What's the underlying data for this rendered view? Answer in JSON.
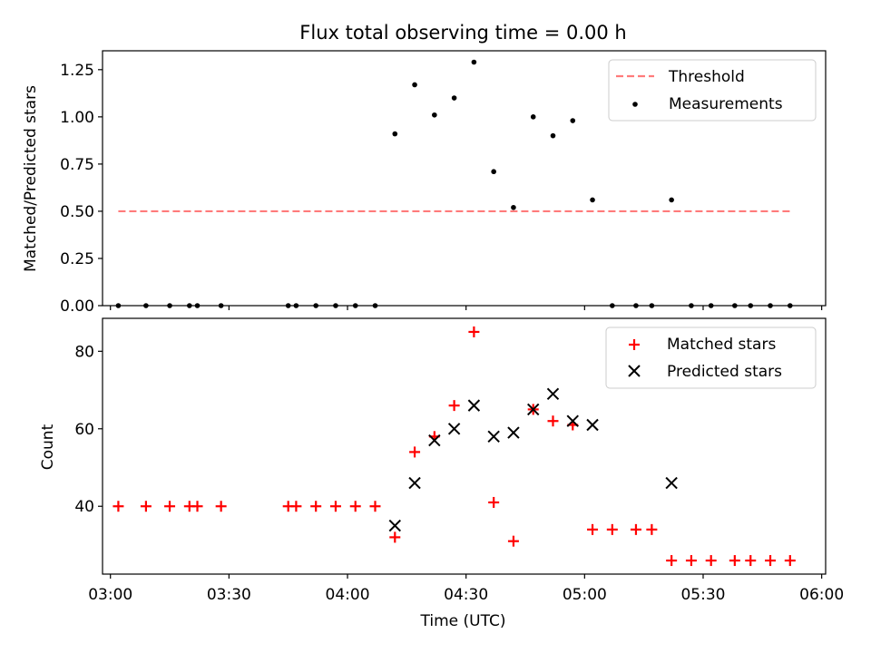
{
  "chart_data": [
    {
      "type": "scatter",
      "title": "Flux total observing time = 0.00 h",
      "xlabel": "",
      "ylabel": "Matched/Predicted stars",
      "xlim": [
        "02:58",
        "06:01"
      ],
      "ylim": [
        0,
        1.35
      ],
      "yticks": [
        "0.00",
        "0.25",
        "0.50",
        "0.75",
        "1.00",
        "1.25"
      ],
      "grid": false,
      "legend_position": "upper right",
      "series": [
        {
          "name": "Threshold",
          "kind": "line",
          "style": "dashed",
          "color": "#ff7b7b",
          "points": [
            {
              "x": "03:02",
              "y": 0.5
            },
            {
              "x": "05:52",
              "y": 0.5
            }
          ]
        },
        {
          "name": "Measurements",
          "kind": "scatter",
          "marker": "dot",
          "color": "#000000",
          "points": [
            {
              "x": "03:02",
              "y": 0
            },
            {
              "x": "03:09",
              "y": 0
            },
            {
              "x": "03:15",
              "y": 0
            },
            {
              "x": "03:20",
              "y": 0
            },
            {
              "x": "03:22",
              "y": 0
            },
            {
              "x": "03:28",
              "y": 0
            },
            {
              "x": "03:45",
              "y": 0
            },
            {
              "x": "03:47",
              "y": 0
            },
            {
              "x": "03:52",
              "y": 0
            },
            {
              "x": "03:57",
              "y": 0
            },
            {
              "x": "04:02",
              "y": 0
            },
            {
              "x": "04:07",
              "y": 0
            },
            {
              "x": "04:12",
              "y": 0.91
            },
            {
              "x": "04:17",
              "y": 1.17
            },
            {
              "x": "04:22",
              "y": 1.01
            },
            {
              "x": "04:27",
              "y": 1.1
            },
            {
              "x": "04:32",
              "y": 1.29
            },
            {
              "x": "04:37",
              "y": 0.71
            },
            {
              "x": "04:42",
              "y": 0.52
            },
            {
              "x": "04:47",
              "y": 1.0
            },
            {
              "x": "04:52",
              "y": 0.9
            },
            {
              "x": "04:57",
              "y": 0.98
            },
            {
              "x": "05:02",
              "y": 0.56
            },
            {
              "x": "05:07",
              "y": 0
            },
            {
              "x": "05:13",
              "y": 0
            },
            {
              "x": "05:17",
              "y": 0
            },
            {
              "x": "05:22",
              "y": 0.56
            },
            {
              "x": "05:27",
              "y": 0
            },
            {
              "x": "05:32",
              "y": 0
            },
            {
              "x": "05:38",
              "y": 0
            },
            {
              "x": "05:42",
              "y": 0
            },
            {
              "x": "05:47",
              "y": 0
            },
            {
              "x": "05:52",
              "y": 0
            }
          ]
        }
      ]
    },
    {
      "type": "scatter",
      "title": "",
      "xlabel": "Time (UTC)",
      "ylabel": "Count",
      "xlim": [
        "02:58",
        "06:01"
      ],
      "xticks": [
        "03:00",
        "03:30",
        "04:00",
        "04:30",
        "05:00",
        "05:30",
        "06:00"
      ],
      "ylim": [
        22.5,
        88.5
      ],
      "yticks": [
        "40",
        "60",
        "80"
      ],
      "grid": false,
      "legend_position": "upper right",
      "series": [
        {
          "name": "Matched stars",
          "kind": "scatter",
          "marker": "plus",
          "color": "#ff0000",
          "points": [
            {
              "x": "03:02",
              "y": 40
            },
            {
              "x": "03:09",
              "y": 40
            },
            {
              "x": "03:15",
              "y": 40
            },
            {
              "x": "03:20",
              "y": 40
            },
            {
              "x": "03:22",
              "y": 40
            },
            {
              "x": "03:28",
              "y": 40
            },
            {
              "x": "03:45",
              "y": 40
            },
            {
              "x": "03:47",
              "y": 40
            },
            {
              "x": "03:52",
              "y": 40
            },
            {
              "x": "03:57",
              "y": 40
            },
            {
              "x": "04:02",
              "y": 40
            },
            {
              "x": "04:07",
              "y": 40
            },
            {
              "x": "04:12",
              "y": 32
            },
            {
              "x": "04:17",
              "y": 54
            },
            {
              "x": "04:22",
              "y": 58
            },
            {
              "x": "04:27",
              "y": 66
            },
            {
              "x": "04:32",
              "y": 85
            },
            {
              "x": "04:37",
              "y": 41
            },
            {
              "x": "04:42",
              "y": 31
            },
            {
              "x": "04:47",
              "y": 65
            },
            {
              "x": "04:52",
              "y": 62
            },
            {
              "x": "04:57",
              "y": 61
            },
            {
              "x": "05:02",
              "y": 34
            },
            {
              "x": "05:07",
              "y": 34
            },
            {
              "x": "05:13",
              "y": 34
            },
            {
              "x": "05:17",
              "y": 34
            },
            {
              "x": "05:22",
              "y": 26
            },
            {
              "x": "05:27",
              "y": 26
            },
            {
              "x": "05:32",
              "y": 26
            },
            {
              "x": "05:38",
              "y": 26
            },
            {
              "x": "05:42",
              "y": 26
            },
            {
              "x": "05:47",
              "y": 26
            },
            {
              "x": "05:52",
              "y": 26
            }
          ]
        },
        {
          "name": "Predicted stars",
          "kind": "scatter",
          "marker": "x",
          "color": "#000000",
          "points": [
            {
              "x": "04:12",
              "y": 35
            },
            {
              "x": "04:17",
              "y": 46
            },
            {
              "x": "04:22",
              "y": 57
            },
            {
              "x": "04:27",
              "y": 60
            },
            {
              "x": "04:32",
              "y": 66
            },
            {
              "x": "04:37",
              "y": 58
            },
            {
              "x": "04:42",
              "y": 59
            },
            {
              "x": "04:47",
              "y": 65
            },
            {
              "x": "04:52",
              "y": 69
            },
            {
              "x": "04:57",
              "y": 62
            },
            {
              "x": "05:02",
              "y": 61
            },
            {
              "x": "05:22",
              "y": 46
            }
          ]
        }
      ]
    }
  ]
}
